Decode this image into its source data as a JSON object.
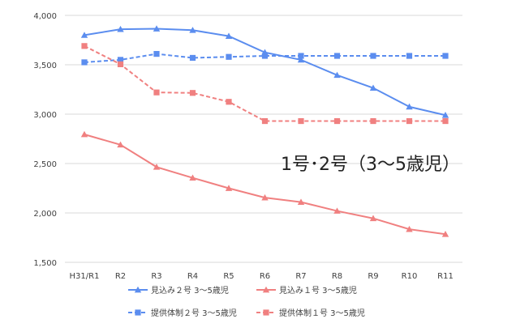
{
  "chart_data": {
    "type": "line",
    "categories": [
      "H31/R1",
      "R2",
      "R3",
      "R4",
      "R5",
      "R6",
      "R7",
      "R8",
      "R9",
      "R10",
      "R11"
    ],
    "ylim": [
      1500,
      4000
    ],
    "yticks": [
      1500,
      2000,
      2500,
      3000,
      3500,
      4000
    ],
    "ytick_labels": [
      "1,500",
      "2,000",
      "2,500",
      "3,000",
      "3,500",
      "4,000"
    ],
    "grid": true,
    "legend_position": "bottom",
    "annotation": "1号･2号（3～5歳児）",
    "series": [
      {
        "name": "見込み２号 3～5歳児",
        "marker": "triangle",
        "dash": "solid",
        "color": "#5B8DEF",
        "values": [
          3800,
          3860,
          3865,
          3850,
          3790,
          3625,
          3550,
          3395,
          3265,
          3075,
          2990
        ]
      },
      {
        "name": "見込み１号 3～5歳児",
        "marker": "triangle",
        "dash": "solid",
        "color": "#F08080",
        "values": [
          2795,
          2690,
          2465,
          2355,
          2250,
          2155,
          2110,
          2020,
          1945,
          1835,
          1785
        ]
      },
      {
        "name": "提供体制２号 3～5歳児",
        "marker": "square",
        "dash": "dashed",
        "color": "#5B8DEF",
        "values": [
          3525,
          3550,
          3610,
          3570,
          3580,
          3590,
          3590,
          3590,
          3590,
          3590,
          3590
        ]
      },
      {
        "name": "提供体制１号 3～5歳児",
        "marker": "square",
        "dash": "dashed",
        "color": "#F08080",
        "values": [
          3690,
          3505,
          3220,
          3215,
          3125,
          2930,
          2930,
          2930,
          2930,
          2930,
          2930
        ]
      }
    ]
  }
}
